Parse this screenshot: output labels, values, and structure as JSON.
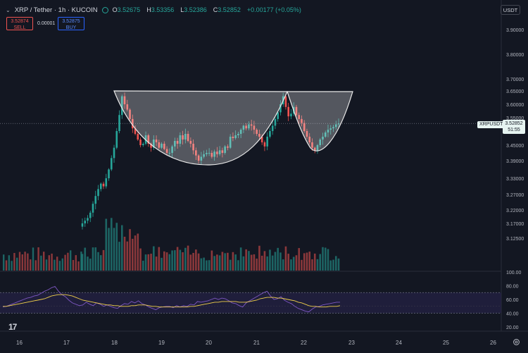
{
  "header": {
    "symbol": "XRP / Tether · 1h · KUCOIN",
    "ohlc": [
      {
        "label": "O",
        "value": "3.52675"
      },
      {
        "label": "H",
        "value": "3.53356"
      },
      {
        "label": "L",
        "value": "3.52386"
      },
      {
        "label": "C",
        "value": "3.52852"
      },
      {
        "label": "",
        "value": "+0.00177 (+0.05%)"
      }
    ]
  },
  "trade": {
    "sell_price": "3.52874",
    "sell_label": "SELL",
    "spread": "0.00001",
    "buy_price": "3.52875",
    "buy_label": "BUY"
  },
  "currency": "USDT",
  "last_price": {
    "symbol": "XRPUSDT",
    "price": "3.52852",
    "countdown": "51:55"
  },
  "price_axis": [
    "3.90000",
    "3.80000",
    "3.70000",
    "3.65000",
    "3.60000",
    "3.55000",
    "3.50000",
    "3.45000",
    "3.39000",
    "3.33000",
    "3.27000",
    "3.22000",
    "3.17000",
    "3.12500"
  ],
  "rsi_axis": [
    "100.00",
    "80.00",
    "60.00",
    "40.00",
    "20.00"
  ],
  "time_axis": [
    "16",
    "17",
    "18",
    "19",
    "20",
    "21",
    "22",
    "23",
    "24",
    "25",
    "26"
  ],
  "colors": {
    "up": "#26a69a",
    "down": "#ef5350",
    "rsi": "#7e57c2",
    "rsi_ma": "#f0d04a",
    "band": "#2a2550"
  },
  "chart_data": [
    {
      "type": "candlestick",
      "title": "XRP / Tether · 1h · KUCOIN",
      "xlabel": "",
      "ylabel": "",
      "x_range": [
        "16",
        "26"
      ],
      "ylim": [
        3.1,
        3.92
      ],
      "annotation": "cup-and-handle drawing",
      "closes": [
        3.17,
        3.18,
        3.19,
        3.21,
        3.24,
        3.265,
        3.29,
        3.31,
        3.3,
        3.33,
        3.36,
        3.4,
        3.44,
        3.5,
        3.56,
        3.63,
        3.6,
        3.58,
        3.545,
        3.51,
        3.49,
        3.47,
        3.45,
        3.455,
        3.485,
        3.455,
        3.44,
        3.47,
        3.46,
        3.44,
        3.455,
        3.435,
        3.42,
        3.42,
        3.445,
        3.465,
        3.455,
        3.485,
        3.47,
        3.49,
        3.465,
        3.455,
        3.43,
        3.41,
        3.39,
        3.405,
        3.415,
        3.42,
        3.42,
        3.405,
        3.425,
        3.415,
        3.43,
        3.42,
        3.445,
        3.44,
        3.48,
        3.475,
        3.485,
        3.49,
        3.505,
        3.52,
        3.51,
        3.525,
        3.52,
        3.505,
        3.49,
        3.48,
        3.46,
        3.445,
        3.48,
        3.5,
        3.52,
        3.545,
        3.57,
        3.6,
        3.63,
        3.59,
        3.555,
        3.565,
        3.59,
        3.56,
        3.545,
        3.53,
        3.5,
        3.48,
        3.46,
        3.44,
        3.43,
        3.45,
        3.47,
        3.48,
        3.495,
        3.505,
        3.51,
        3.515,
        3.525,
        3.52852
      ]
    },
    {
      "type": "line",
      "title": "RSI",
      "ylim": [
        20,
        100
      ],
      "band": [
        40,
        70
      ],
      "series": [
        {
          "values": [
            49,
            50,
            52,
            54,
            56,
            58,
            60,
            62,
            63,
            65,
            66,
            69,
            72,
            74,
            77,
            79,
            72,
            67,
            64,
            59,
            55,
            53,
            51,
            52,
            56,
            53,
            51,
            55,
            53,
            50,
            52,
            50,
            48,
            47,
            51,
            54,
            53,
            57,
            55,
            58,
            54,
            52,
            49,
            47,
            45,
            48,
            49,
            50,
            50,
            48,
            51,
            49,
            51,
            50,
            53,
            52,
            57,
            56,
            57,
            58,
            60,
            62,
            60,
            62,
            61,
            58,
            55,
            54,
            51,
            49,
            55,
            58,
            61,
            64,
            67,
            70,
            72,
            65,
            60,
            61,
            64,
            59,
            56,
            54,
            50,
            47,
            45,
            43,
            42,
            46,
            49,
            50,
            52,
            53,
            54,
            55,
            56,
            56
          ]
        },
        {
          "values": [
            50,
            50,
            51,
            52,
            53,
            54,
            55,
            56,
            57,
            58,
            59,
            60,
            61,
            63,
            65,
            66,
            67,
            67,
            67,
            66,
            65,
            63,
            61,
            59,
            58,
            57,
            56,
            55,
            54,
            53,
            52,
            52,
            51,
            51,
            50,
            50,
            50,
            51,
            51,
            52,
            52,
            52,
            51,
            50,
            50,
            49,
            49,
            49,
            49,
            49,
            49,
            49,
            49,
            49,
            50,
            50,
            51,
            52,
            53,
            54,
            55,
            56,
            56,
            57,
            57,
            57,
            57,
            57,
            56,
            56,
            56,
            57,
            58,
            59,
            61,
            62,
            63,
            63,
            63,
            62,
            62,
            61,
            60,
            59,
            58,
            56,
            55,
            53,
            51,
            50,
            50,
            49,
            49,
            49,
            50,
            50,
            50,
            51
          ]
        }
      ]
    }
  ]
}
